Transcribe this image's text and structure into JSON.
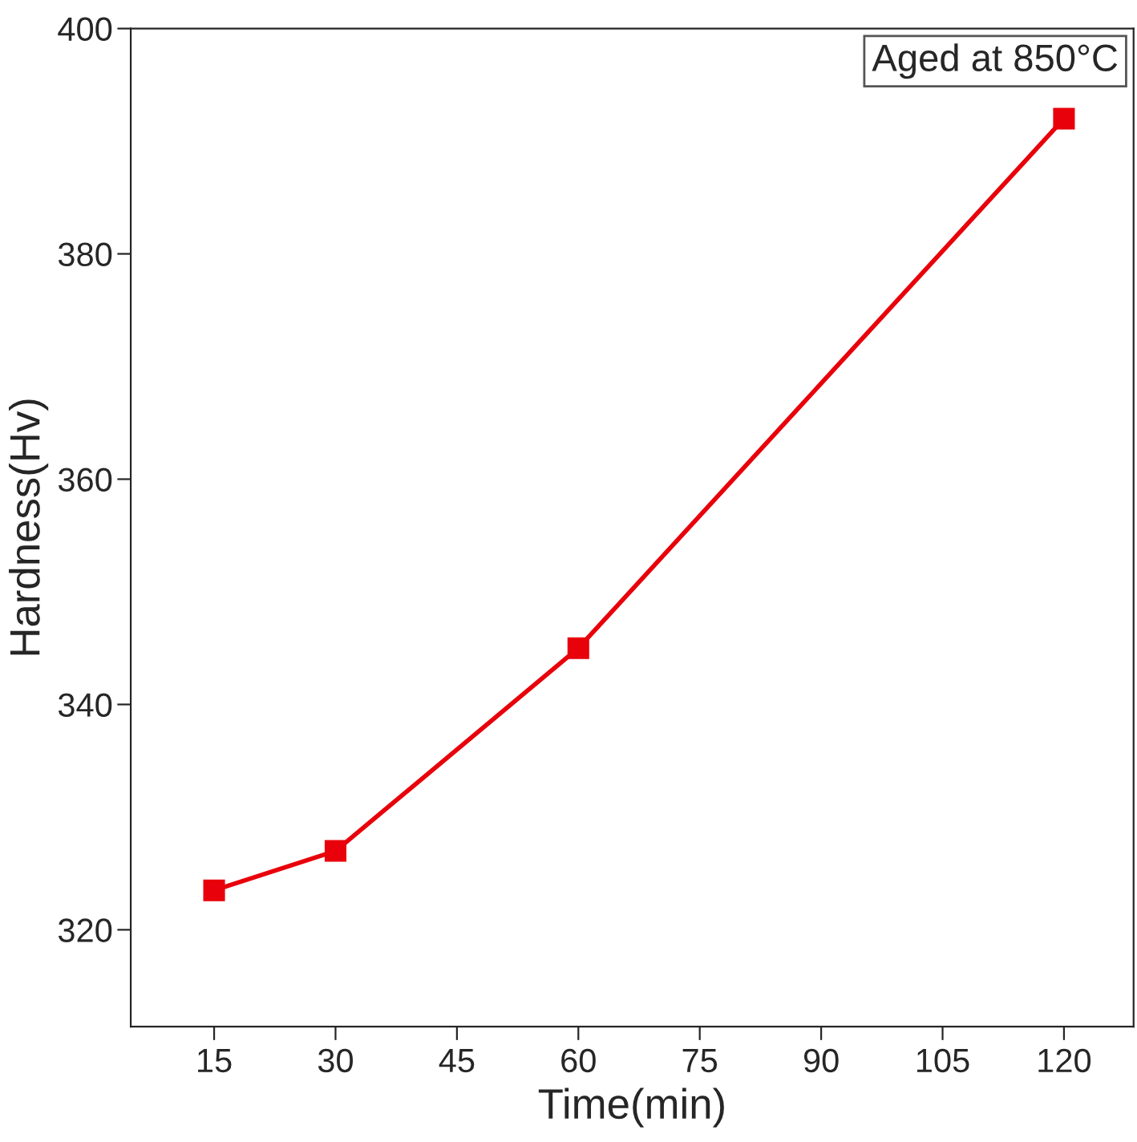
{
  "chart_data": {
    "type": "line",
    "xlabel": "Time(min)",
    "ylabel": "Hardness(Hv)",
    "x": [
      15,
      30,
      60,
      120
    ],
    "series": [
      {
        "color": "#e8000b",
        "values": [
          323.5,
          327,
          345,
          392
        ]
      }
    ],
    "xlim": [
      4.7,
      128.6
    ],
    "xticks": [
      15,
      30,
      45,
      60,
      75,
      90,
      105,
      120
    ],
    "ylim": [
      311.4,
      400
    ],
    "yticks": [
      320,
      340,
      360,
      380,
      400
    ],
    "marker": "square",
    "line_style": "solid",
    "grid": false,
    "legend": false,
    "annotations": [
      "Aged at 850°C"
    ]
  }
}
